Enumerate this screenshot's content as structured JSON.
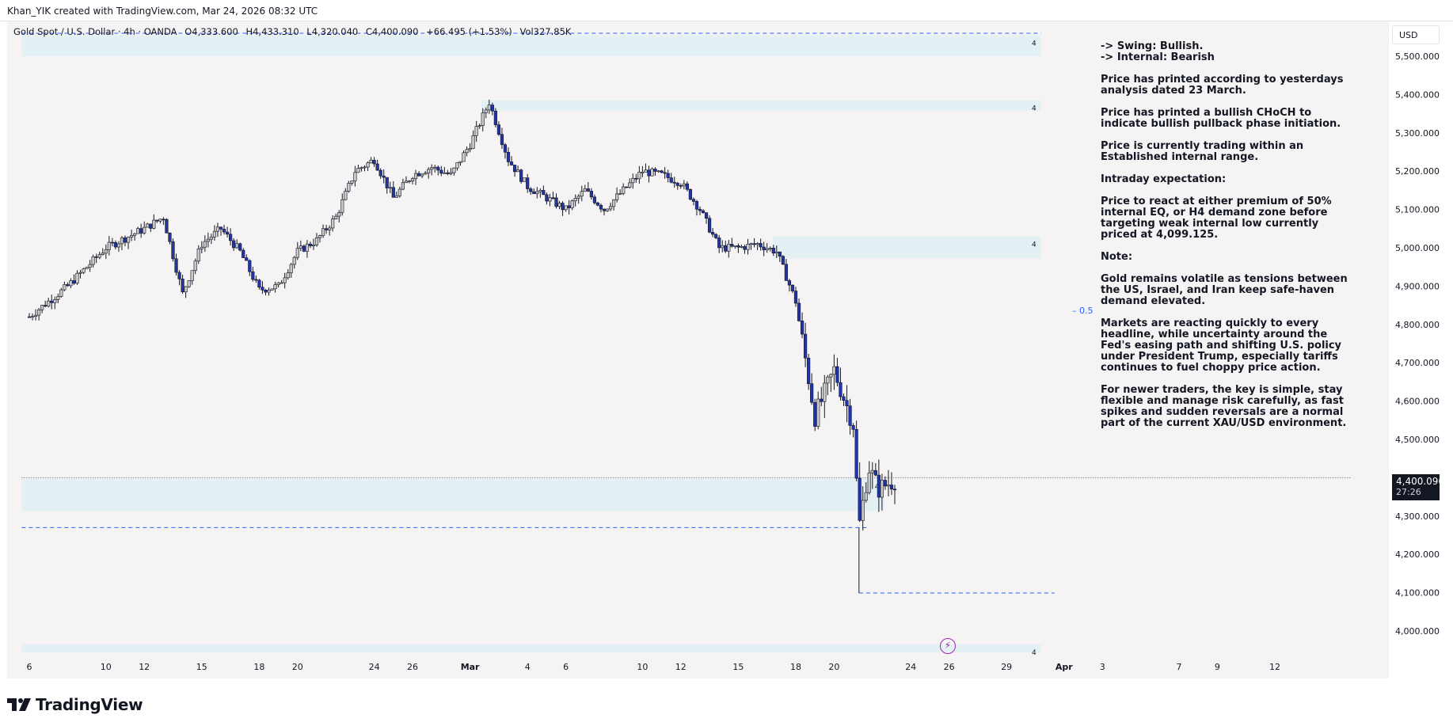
{
  "header": {
    "credit": "Khan_YIK created with TradingView.com, Mar 24, 2026 08:32 UTC",
    "symbol": "Gold Spot / U.S. Dollar · 4h · OANDA",
    "ohlc": {
      "open_label": "O",
      "open": "4,333.600",
      "high_label": "H",
      "high": "4,433.310",
      "low_label": "L",
      "low": "4,320.040",
      "close_label": "C",
      "close": "4,400.090",
      "change": "+66.495 (+1.53%)",
      "volume_label": "Vol",
      "volume": "327.85K"
    }
  },
  "currency_button": "USD",
  "last_price": {
    "value": "4,400.090",
    "countdown": "27:26"
  },
  "fib_label": "0.5",
  "zone_label": "4",
  "analysis": [
    "-> Swing:  Bullish.",
    "-> Internal:  Bearish",
    "Price has printed according to yesterdays analysis dated 23 March.",
    "Price has printed a bullish CHoCH to indicate bullish pullback phase initiation.",
    "Price is currently trading within an Established internal range.",
    "Intraday expectation:",
    "Price to react at either premium of 50% internal EQ, or H4 demand zone before targeting weak internal low currently priced at 4,099.125.",
    "Note:",
    "Gold remains volatile as tensions between the US, Israel, and Iran keep safe-haven demand elevated.",
    "Markets are reacting quickly to every headline, while uncertainty around the Fed's easing path and shifting U.S. policy under President Trump, especially tariffs continues to fuel choppy price action.",
    "For newer traders, the key is simple, stay flexible and manage risk carefully, as fast spikes and sudden reversals are a normal part of the current XAU/USD environment."
  ],
  "footer_logo": "TradingView",
  "colors": {
    "bull_body": "#c9c9c9",
    "bear_body": "#2235a8",
    "wick": "#131722",
    "zone": "#e3f1f4",
    "dash": "#2962ff",
    "background": "#f6f3f5"
  },
  "chart_data": {
    "type": "candlestick",
    "title": "Gold Spot / U.S. Dollar · 4h · OANDA",
    "ylim": [
      3930,
      5590
    ],
    "y_ticks": [
      4000,
      4100,
      4200,
      4300,
      4400,
      4500,
      4600,
      4700,
      4800,
      4900,
      5000,
      5100,
      5200,
      5300,
      5400,
      5500
    ],
    "y_tick_labels": [
      "4,000.000",
      "4,100.000",
      "4,200.000",
      "4,300.000",
      "4,400.000",
      "4,500.000",
      "4,600.000",
      "4,700.000",
      "4,800.000",
      "4,900.000",
      "5,000.000",
      "5,100.000",
      "5,200.000",
      "5,300.000",
      "5,400.000",
      "5,500.000"
    ],
    "x_ticks": [
      {
        "label": "6",
        "day": 0
      },
      {
        "label": "10",
        "day": 4
      },
      {
        "label": "12",
        "day": 6
      },
      {
        "label": "15",
        "day": 9
      },
      {
        "label": "18",
        "day": 12
      },
      {
        "label": "20",
        "day": 14
      },
      {
        "label": "24",
        "day": 18
      },
      {
        "label": "26",
        "day": 20
      },
      {
        "label": "Mar",
        "day": 23
      },
      {
        "label": "4",
        "day": 26
      },
      {
        "label": "6",
        "day": 28
      },
      {
        "label": "10",
        "day": 32
      },
      {
        "label": "12",
        "day": 34
      },
      {
        "label": "15",
        "day": 37
      },
      {
        "label": "18",
        "day": 40
      },
      {
        "label": "20",
        "day": 42
      },
      {
        "label": "24",
        "day": 46
      },
      {
        "label": "26",
        "day": 48
      },
      {
        "label": "29",
        "day": 51
      },
      {
        "label": "Apr",
        "day": 54
      },
      {
        "label": "3",
        "day": 56
      },
      {
        "label": "7",
        "day": 60
      },
      {
        "label": "9",
        "day": 62
      },
      {
        "label": "12",
        "day": 65
      }
    ],
    "anchors": [
      [
        0,
        4820
      ],
      [
        2,
        4900
      ],
      [
        4,
        5000
      ],
      [
        6,
        5050
      ],
      [
        7,
        5080
      ],
      [
        8,
        4880
      ],
      [
        9,
        5010
      ],
      [
        10,
        5050
      ],
      [
        11,
        4990
      ],
      [
        12,
        4890
      ],
      [
        13,
        4900
      ],
      [
        14,
        4990
      ],
      [
        15,
        5020
      ],
      [
        16,
        5080
      ],
      [
        17,
        5200
      ],
      [
        18,
        5230
      ],
      [
        19,
        5130
      ],
      [
        20,
        5190
      ],
      [
        21,
        5210
      ],
      [
        22,
        5190
      ],
      [
        23,
        5270
      ],
      [
        24,
        5380
      ],
      [
        25,
        5230
      ],
      [
        26,
        5160
      ],
      [
        27,
        5130
      ],
      [
        28,
        5100
      ],
      [
        29,
        5150
      ],
      [
        30,
        5100
      ],
      [
        31,
        5150
      ],
      [
        32,
        5200
      ],
      [
        33,
        5190
      ],
      [
        34,
        5170
      ],
      [
        35,
        5100
      ],
      [
        36,
        5000
      ],
      [
        37,
        5000
      ],
      [
        38,
        5010
      ],
      [
        39,
        4990
      ],
      [
        40,
        4860
      ],
      [
        41,
        4560
      ],
      [
        42,
        4680
      ],
      [
        43,
        4540
      ],
      [
        43.3,
        4270
      ],
      [
        43.8,
        4430
      ],
      [
        44.3,
        4370
      ],
      [
        45,
        4390
      ],
      [
        45.3,
        4400
      ]
    ],
    "zones": [
      {
        "label": "4",
        "top": 5555,
        "bottom": 5500,
        "from_day": -0.4,
        "to_day": 52.8
      },
      {
        "label": "4",
        "top": 5385,
        "bottom": 5357,
        "from_day": 23.6,
        "to_day": 52.8
      },
      {
        "label": "4",
        "top": 5030,
        "bottom": 4972,
        "from_day": 38.8,
        "to_day": 52.8
      },
      {
        "label": "4",
        "top": 4398,
        "bottom": 4313,
        "from_day": -0.4,
        "to_day": 44.6
      },
      {
        "label": "4",
        "top": 3965,
        "bottom": 3945,
        "from_day": -0.4,
        "to_day": 52.8
      }
    ],
    "levels": [
      {
        "name": "top dashed",
        "value": 5560,
        "from_day": -0.4,
        "to_day": 52.8
      },
      {
        "name": "mid dashed",
        "value": 4270,
        "from_day": -0.4,
        "to_day": 43.7
      },
      {
        "name": "weak internal low",
        "value": 4099.125,
        "from_day": 43.3,
        "to_day": 53.5
      },
      {
        "name": "last price",
        "value": 4400.09,
        "from_day": -0.4,
        "to_day": 69
      }
    ],
    "fib_level": {
      "label": "0.5",
      "value": 4827
    }
  }
}
